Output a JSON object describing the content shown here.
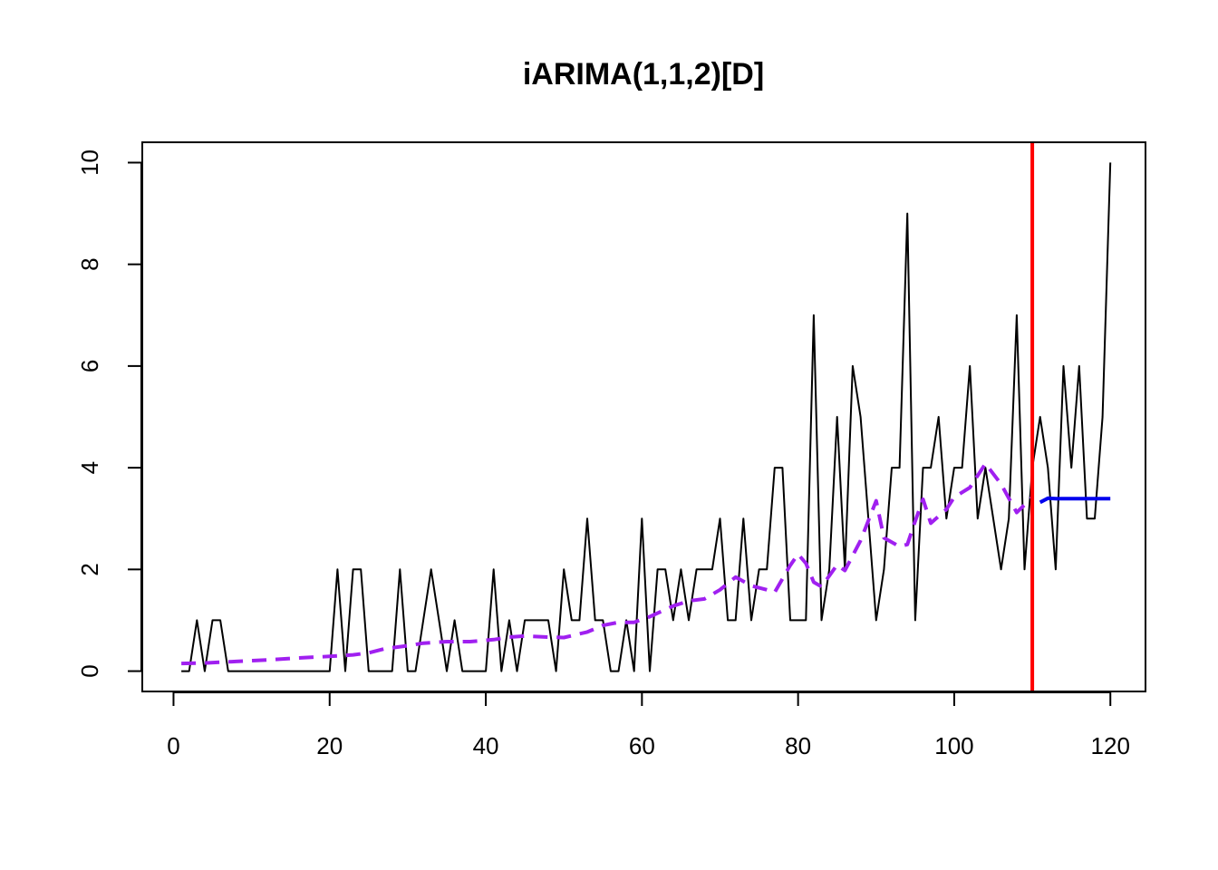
{
  "chart_data": {
    "type": "line",
    "title": "iARIMA(1,1,2)[D]",
    "xlabel": "",
    "ylabel": "",
    "xlim": [
      -4,
      124.5
    ],
    "ylim": [
      -0.4,
      10.4
    ],
    "x_ticks": [
      0,
      20,
      40,
      60,
      80,
      100,
      120
    ],
    "y_ticks": [
      0,
      2,
      4,
      6,
      8,
      10
    ],
    "grid": false,
    "legend": "none",
    "holdout_start": 110,
    "series": [
      {
        "role": "actuals",
        "color": "#000000",
        "style": "solid",
        "x_start": 1,
        "values": [
          0,
          0,
          1,
          0,
          1,
          1,
          0,
          0,
          0,
          0,
          0,
          0,
          0,
          0,
          0,
          0,
          0,
          0,
          0,
          0,
          2,
          0,
          2,
          2,
          0,
          0,
          0,
          0,
          2,
          0,
          0,
          1,
          2,
          1,
          0,
          1,
          0,
          0,
          0,
          0,
          2,
          0,
          1,
          0,
          1,
          1,
          1,
          1,
          0,
          2,
          1,
          1,
          3,
          1,
          1,
          0,
          0,
          1,
          0,
          3,
          0,
          2,
          2,
          1,
          2,
          1,
          2,
          2,
          2,
          3,
          1,
          1,
          3,
          1,
          2,
          2,
          4,
          4,
          1,
          1,
          1,
          7,
          1,
          2,
          5,
          2,
          6,
          5,
          3,
          1,
          2,
          4,
          4,
          9,
          1,
          4,
          4,
          5,
          3,
          4,
          4,
          6,
          3,
          4,
          3,
          2,
          3,
          7,
          2,
          4,
          5,
          4,
          2,
          6,
          4,
          6,
          3,
          3,
          5,
          10
        ]
      },
      {
        "role": "fitted",
        "color": "#a020f0",
        "style": "dashed",
        "points": [
          [
            1,
            0.15
          ],
          [
            4,
            0.16
          ],
          [
            8,
            0.19
          ],
          [
            12,
            0.22
          ],
          [
            16,
            0.26
          ],
          [
            20,
            0.29
          ],
          [
            23,
            0.32
          ],
          [
            25,
            0.36
          ],
          [
            27,
            0.44
          ],
          [
            30,
            0.5
          ],
          [
            32,
            0.55
          ],
          [
            35,
            0.58
          ],
          [
            38,
            0.58
          ],
          [
            41,
            0.62
          ],
          [
            43,
            0.67
          ],
          [
            45,
            0.69
          ],
          [
            48,
            0.67
          ],
          [
            50,
            0.66
          ],
          [
            53,
            0.77
          ],
          [
            55,
            0.9
          ],
          [
            57,
            0.96
          ],
          [
            59,
            0.96
          ],
          [
            61,
            1.07
          ],
          [
            64,
            1.28
          ],
          [
            66,
            1.38
          ],
          [
            68,
            1.42
          ],
          [
            70,
            1.6
          ],
          [
            72,
            1.85
          ],
          [
            74,
            1.68
          ],
          [
            76,
            1.6
          ],
          [
            77,
            1.55
          ],
          [
            79,
            2.08
          ],
          [
            80,
            2.3
          ],
          [
            81,
            2.12
          ],
          [
            82,
            1.75
          ],
          [
            83,
            1.66
          ],
          [
            85,
            2.09
          ],
          [
            86,
            1.98
          ],
          [
            88,
            2.57
          ],
          [
            90,
            3.35
          ],
          [
            91,
            2.62
          ],
          [
            93,
            2.45
          ],
          [
            94,
            2.49
          ],
          [
            95,
            2.95
          ],
          [
            96,
            3.38
          ],
          [
            97,
            2.91
          ],
          [
            99,
            3.18
          ],
          [
            100,
            3.42
          ],
          [
            102,
            3.61
          ],
          [
            104,
            4.08
          ],
          [
            106,
            3.68
          ],
          [
            107,
            3.4
          ],
          [
            108,
            3.12
          ],
          [
            110,
            3.42
          ]
        ]
      },
      {
        "role": "forecast",
        "color": "#0000ee",
        "style": "solid",
        "points": [
          [
            111,
            3.32
          ],
          [
            112,
            3.4
          ],
          [
            113,
            3.39
          ],
          [
            114,
            3.39
          ],
          [
            115,
            3.39
          ],
          [
            116,
            3.39
          ],
          [
            117,
            3.39
          ],
          [
            118,
            3.39
          ],
          [
            119,
            3.39
          ],
          [
            120,
            3.39
          ]
        ]
      }
    ]
  }
}
